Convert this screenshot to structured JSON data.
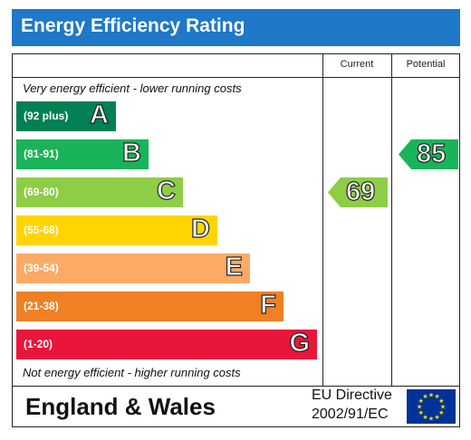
{
  "header": {
    "title": "Energy Efficiency Rating",
    "color": "#1f78c8"
  },
  "columns": {
    "current": "Current",
    "potential": "Potential"
  },
  "captions": {
    "top": "Very energy efficient - lower running costs",
    "bottom": "Not energy efficient - higher running costs"
  },
  "bands": [
    {
      "range": "(92 plus)",
      "letter": "A",
      "color": "#008054"
    },
    {
      "range": "(81-91)",
      "letter": "B",
      "color": "#19b459"
    },
    {
      "range": "(69-80)",
      "letter": "C",
      "color": "#8dce46"
    },
    {
      "range": "(55-68)",
      "letter": "D",
      "color": "#ffd500"
    },
    {
      "range": "(39-54)",
      "letter": "E",
      "color": "#fcaa65"
    },
    {
      "range": "(21-38)",
      "letter": "F",
      "color": "#ef8023"
    },
    {
      "range": "(1-20)",
      "letter": "G",
      "color": "#e9153b"
    }
  ],
  "ratings": {
    "current": {
      "value": "69",
      "band": "C",
      "color": "#8dce46"
    },
    "potential": {
      "value": "85",
      "band": "B",
      "color": "#19b459"
    }
  },
  "footer": {
    "region": "England & Wales",
    "directive_line1": "EU Directive",
    "directive_line2": "2002/91/EC"
  },
  "icons": {
    "flag": "eu-flag-icon"
  }
}
